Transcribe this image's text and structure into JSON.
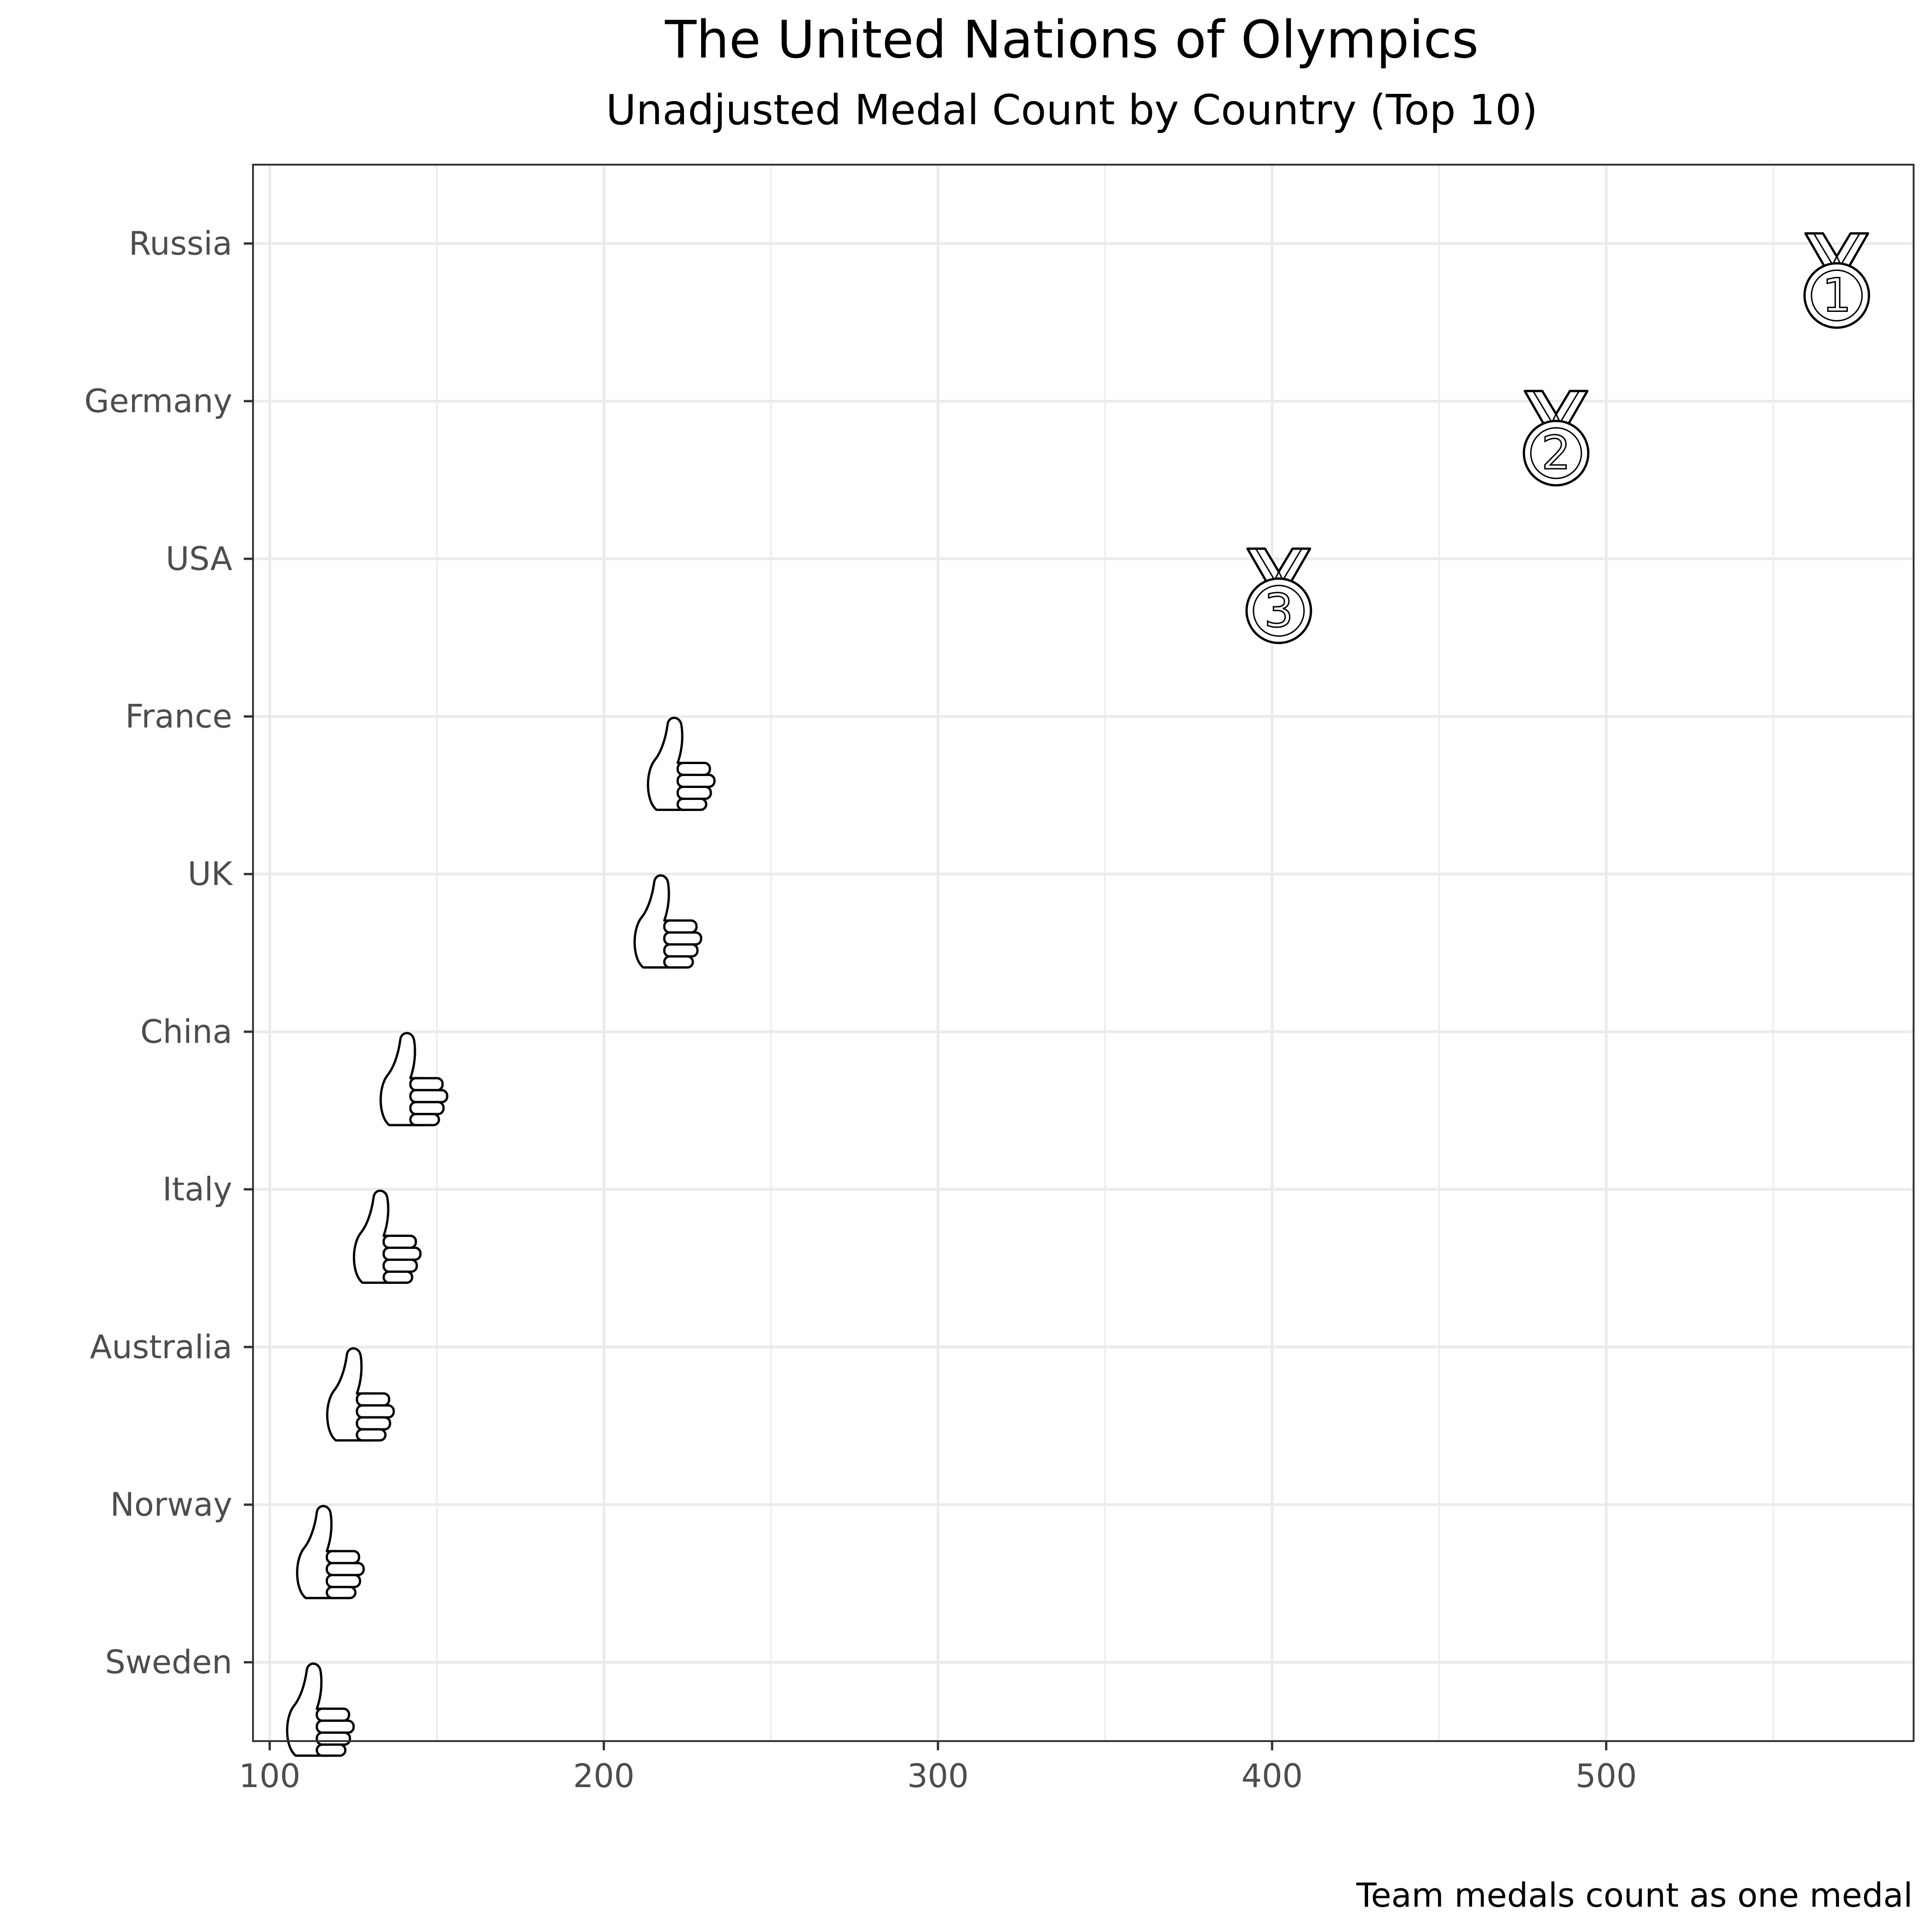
{
  "chart_data": {
    "type": "scatter",
    "title": "The United Nations of Olympics",
    "subtitle": "Unadjusted Medal Count by Country (Top 10)",
    "caption": "Team medals count as one medal",
    "xlabel": "",
    "ylabel": "",
    "xlim": [
      95,
      592
    ],
    "x_ticks": [
      100,
      200,
      300,
      400,
      500
    ],
    "grid": true,
    "categories": [
      "Russia",
      "Germany",
      "USA",
      "France",
      "UK",
      "China",
      "Italy",
      "Australia",
      "Norway",
      "Sweden"
    ],
    "values": [
      569,
      485,
      402,
      221,
      217,
      141,
      133,
      125,
      116,
      113
    ],
    "markers": [
      "medal-1",
      "medal-2",
      "medal-3",
      "thumbs-up",
      "thumbs-up",
      "thumbs-up",
      "thumbs-up",
      "thumbs-up",
      "thumbs-up",
      "thumbs-up"
    ]
  }
}
